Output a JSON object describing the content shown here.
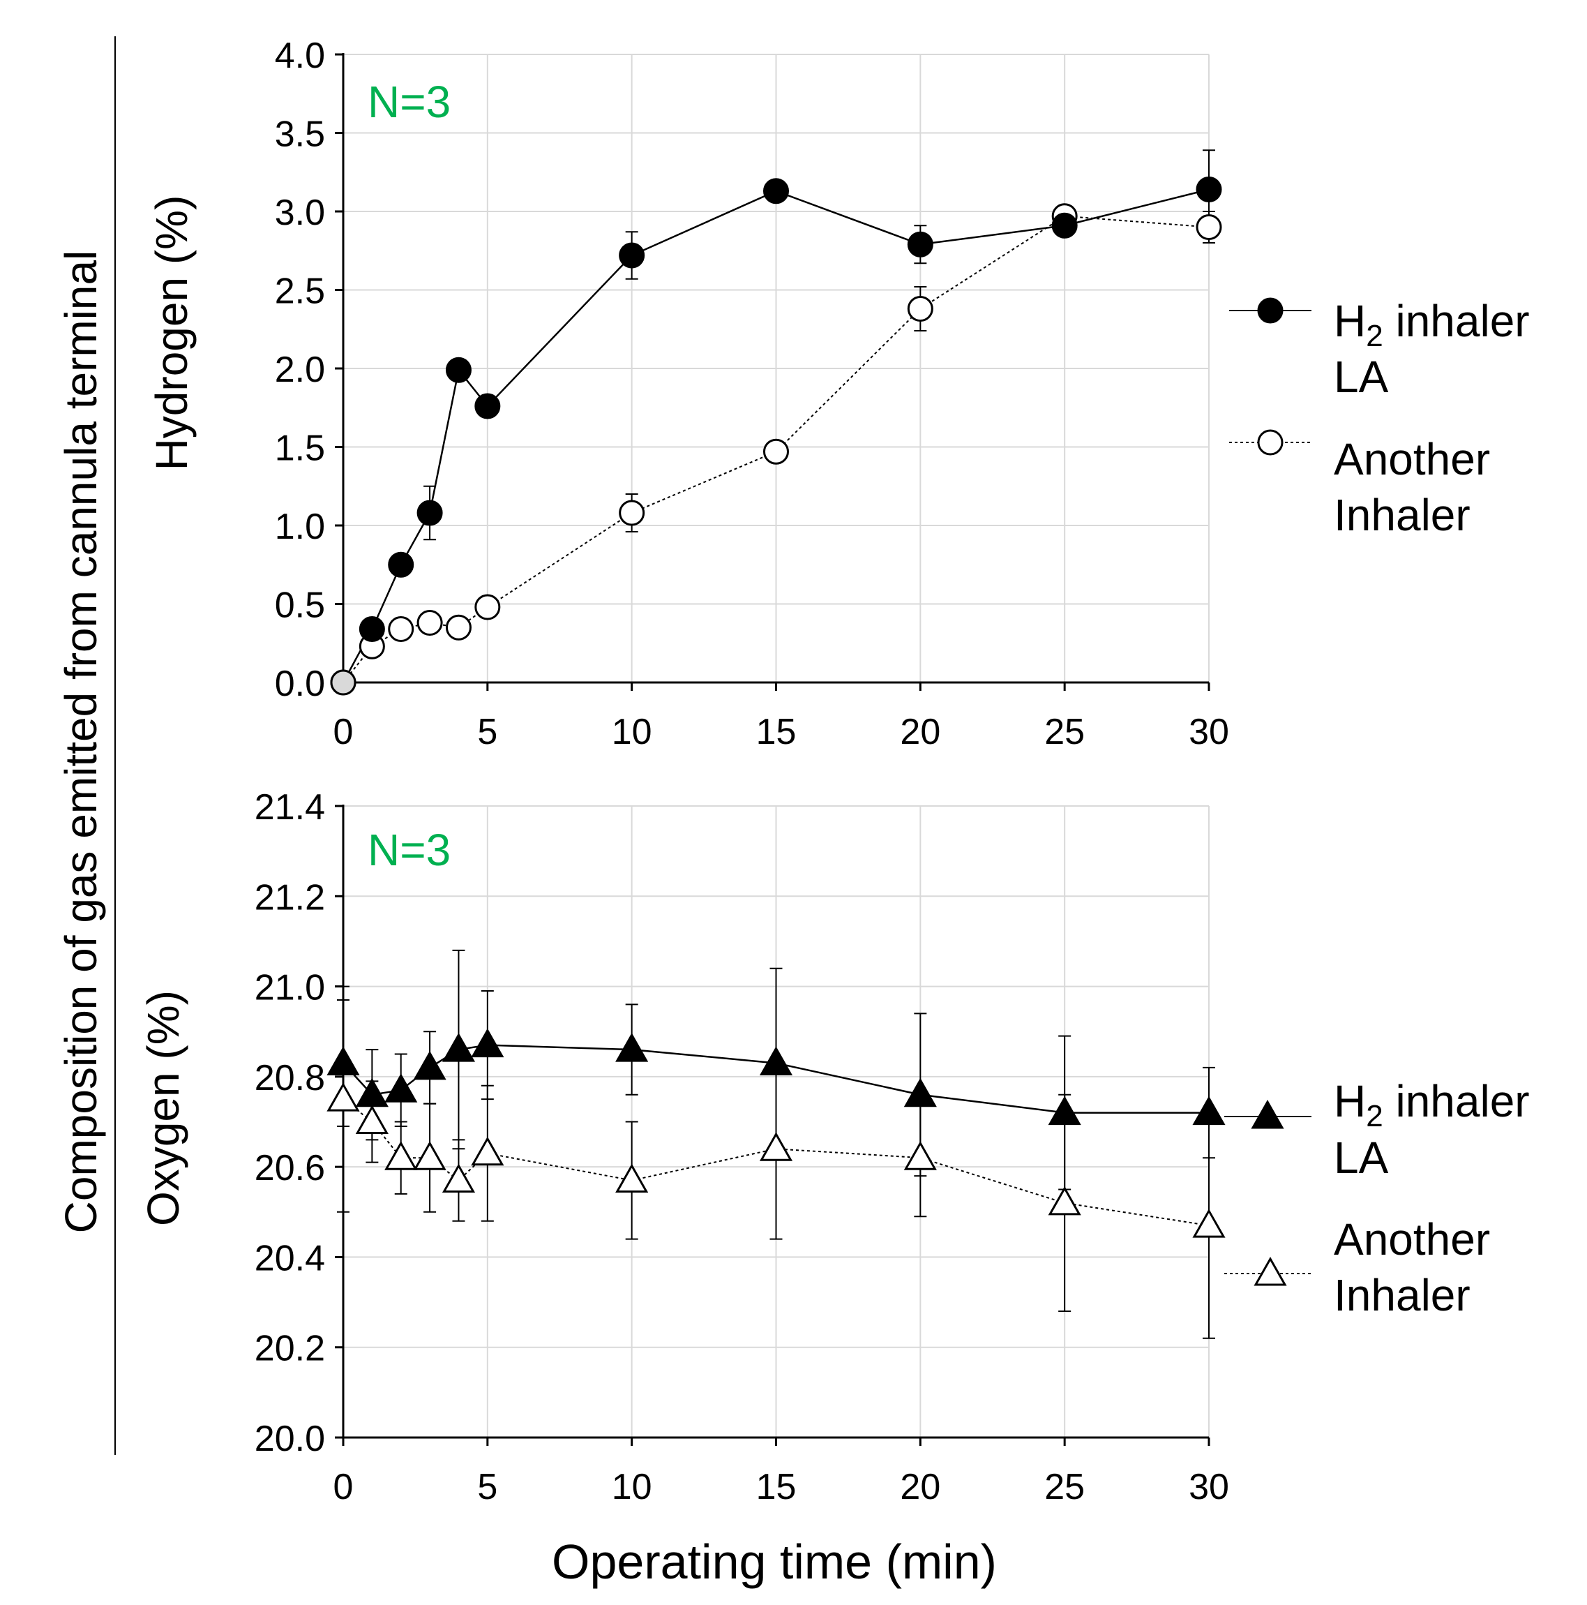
{
  "figure": {
    "shared_ylabel": "Composition of gas emitted from cannula terminal",
    "shared_xlabel": "Operating time (min)"
  },
  "colors": {
    "annotation": "#00B050",
    "grid": "#d9d9d9",
    "axis": "#000000",
    "marker_filled": "#000000",
    "marker_open": "#ffffff"
  },
  "legend_top": [
    {
      "line1_main": "H",
      "line1_sub": "2",
      "line1_rest": " inhaler",
      "line2": "LA"
    },
    {
      "line1_main": "Another",
      "line1_sub": "",
      "line1_rest": "",
      "line2": "Inhaler"
    }
  ],
  "legend_bottom": [
    {
      "line1_main": "H",
      "line1_sub": "2",
      "line1_rest": " inhaler",
      "line2": "LA"
    },
    {
      "line1_main": "Another",
      "line1_sub": "",
      "line1_rest": "",
      "line2": "Inhaler"
    }
  ],
  "chart_data": [
    {
      "type": "line",
      "title": "",
      "annotation": "N=3",
      "xlabel": "",
      "ylabel": "Hydrogen (%)",
      "xlim": [
        0,
        30
      ],
      "ylim": [
        0,
        4
      ],
      "x_ticks": [
        "0",
        "5",
        "10",
        "15",
        "20",
        "25",
        "30"
      ],
      "y_ticks": [
        "0.0",
        "0.5",
        "1.0",
        "1.5",
        "2.0",
        "2.5",
        "3.0",
        "3.5",
        "4.0"
      ],
      "grid": true,
      "legend_position": "right",
      "marker_shape": "circle",
      "x": [
        0,
        1,
        2,
        3,
        4,
        5,
        10,
        15,
        20,
        25,
        30
      ],
      "series": [
        {
          "name": "H2 inhaler LA",
          "marker_fill": "filled",
          "line_style": "solid",
          "values": [
            0,
            0.34,
            0.75,
            1.08,
            1.99,
            1.76,
            2.72,
            3.13,
            2.79,
            2.91,
            3.14
          ],
          "error": [
            0,
            0.03,
            0.03,
            0.17,
            0.04,
            0.04,
            0.15,
            0.03,
            0.12,
            0.03,
            0.25
          ]
        },
        {
          "name": "Another Inhaler",
          "marker_fill": "open",
          "line_style": "dotted",
          "values": [
            0,
            0.23,
            0.34,
            0.38,
            0.35,
            0.48,
            1.08,
            1.47,
            2.38,
            2.97,
            2.9
          ],
          "error": [
            0,
            0.02,
            0.03,
            0.03,
            0.02,
            0.03,
            0.12,
            0.03,
            0.14,
            0.03,
            0.1
          ]
        }
      ]
    },
    {
      "type": "line",
      "title": "",
      "annotation": "N=3",
      "xlabel": "Operating time (min)",
      "ylabel": "Oxygen (%)",
      "xlim": [
        0,
        30
      ],
      "ylim": [
        20.0,
        21.4
      ],
      "x_ticks": [
        "0",
        "5",
        "10",
        "15",
        "20",
        "25",
        "30"
      ],
      "y_ticks": [
        "20.0",
        "20.2",
        "20.4",
        "20.6",
        "20.8",
        "21.0",
        "21.2",
        "21.4"
      ],
      "grid": true,
      "legend_position": "right",
      "marker_shape": "triangle",
      "x": [
        0,
        1,
        2,
        3,
        4,
        5,
        10,
        15,
        20,
        25,
        30
      ],
      "series": [
        {
          "name": "H2 inhaler LA",
          "marker_fill": "filled",
          "line_style": "solid",
          "values": [
            20.83,
            20.76,
            20.77,
            20.82,
            20.86,
            20.87,
            20.86,
            20.83,
            20.76,
            20.72,
            20.72
          ],
          "error": [
            0.14,
            0.1,
            0.08,
            0.08,
            0.22,
            0.12,
            0.1,
            0.21,
            0.18,
            0.17,
            0.1
          ]
        },
        {
          "name": "Another Inhaler",
          "marker_fill": "open",
          "line_style": "dotted",
          "values": [
            20.75,
            20.7,
            20.62,
            20.62,
            20.57,
            20.63,
            20.57,
            20.64,
            20.62,
            20.52,
            20.47
          ],
          "error": [
            0.25,
            0.09,
            0.08,
            0.12,
            0.09,
            0.15,
            0.13,
            0.2,
            0.13,
            0.24,
            0.25
          ]
        }
      ]
    }
  ]
}
